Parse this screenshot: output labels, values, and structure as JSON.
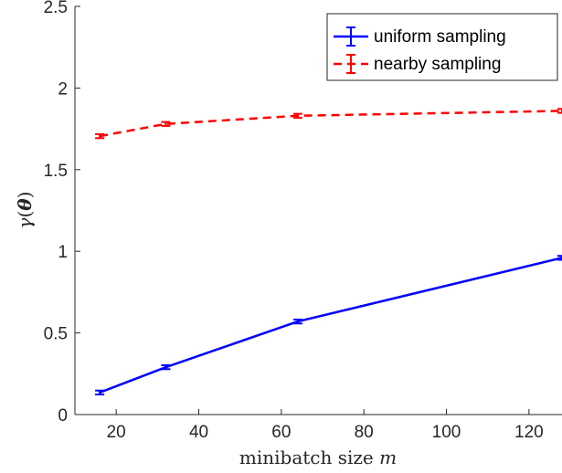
{
  "chart_data": {
    "type": "line",
    "xlabel": "minibatch size m",
    "ylabel": "γ(θ)",
    "xlim": [
      10,
      128
    ],
    "ylim": [
      0,
      2.5
    ],
    "x_ticks": [
      20,
      40,
      60,
      80,
      100,
      120
    ],
    "y_ticks": [
      0,
      0.5,
      1,
      1.5,
      2,
      2.5
    ],
    "y_tick_labels": [
      "0",
      "0.5",
      "1",
      "1.5",
      "2",
      "2.5"
    ],
    "grid": false,
    "legend_position": "top-right",
    "series": [
      {
        "name": "uniform sampling",
        "color": "#0000ff",
        "style": "solid",
        "x": [
          16,
          32,
          64,
          128
        ],
        "y": [
          0.135,
          0.29,
          0.57,
          0.96
        ],
        "err": [
          0.012,
          0.012,
          0.012,
          0.012
        ]
      },
      {
        "name": "nearby sampling",
        "color": "#ff0000",
        "style": "dashed",
        "x": [
          16,
          32,
          64,
          128
        ],
        "y": [
          1.705,
          1.78,
          1.83,
          1.86
        ],
        "err": [
          0.012,
          0.012,
          0.012,
          0.012
        ]
      }
    ]
  }
}
